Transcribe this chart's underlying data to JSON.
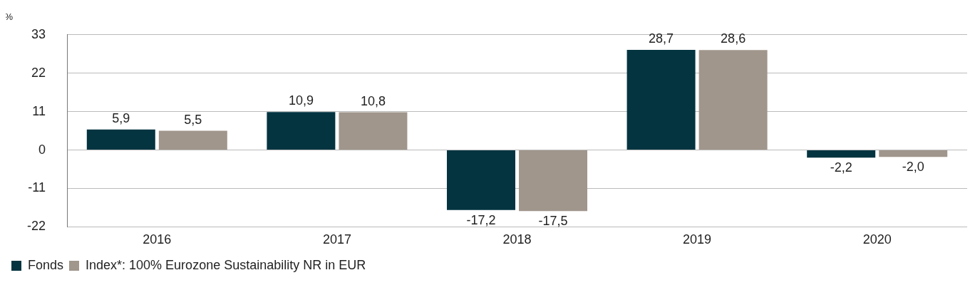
{
  "chart_data": {
    "type": "bar",
    "ylabel": "%",
    "categories": [
      "2016",
      "2017",
      "2018",
      "2019",
      "2020"
    ],
    "series": [
      {
        "name": "Fonds",
        "color": "#033440",
        "values": [
          5.9,
          10.9,
          -17.2,
          28.7,
          -2.2
        ],
        "value_labels": [
          "5,9",
          "10,9",
          "-17,2",
          "28,7",
          "-2,2"
        ]
      },
      {
        "name": "Index*: 100% Eurozone Sustainability NR in EUR",
        "color": "#a0968c",
        "values": [
          5.5,
          10.8,
          -17.5,
          28.6,
          -2.0
        ],
        "value_labels": [
          "5,5",
          "10,8",
          "-17,5",
          "28,6",
          "-2,0"
        ]
      }
    ],
    "ylim": [
      -22,
      33
    ],
    "yticks": [
      -22,
      -11,
      0,
      11,
      22,
      33
    ],
    "grid": "y",
    "legend": "bottom left"
  }
}
